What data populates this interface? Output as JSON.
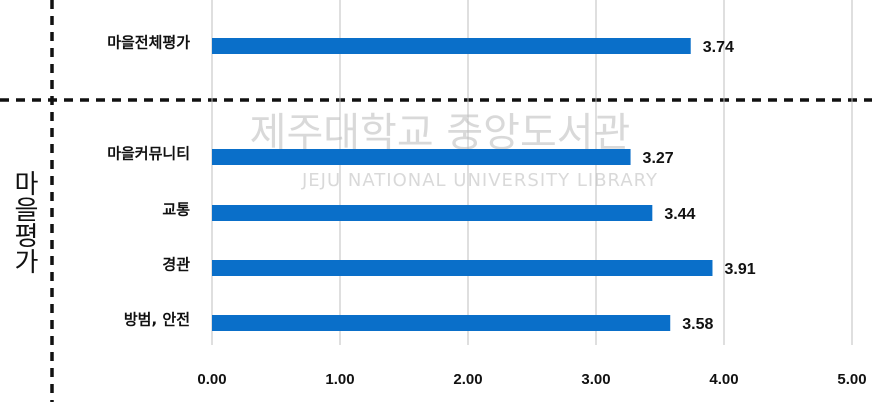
{
  "chart_data": {
    "type": "bar",
    "orientation": "horizontal",
    "group_label": "마을평가",
    "watermark": [
      "제주대학교 중앙도서관",
      "JEJU NATIONAL UNIVERSITY LIBRARY"
    ],
    "categories": [
      "마을전체평가",
      "마을커뮤니티",
      "교통",
      "경관",
      "방범, 안전"
    ],
    "values": [
      3.74,
      3.27,
      3.44,
      3.91,
      3.58
    ],
    "color": "#0a6fc9",
    "xlim": [
      0,
      5
    ],
    "xticks": [
      {
        "value": 0,
        "label": "0.00"
      },
      {
        "value": 1,
        "label": "1.00"
      },
      {
        "value": 2,
        "label": "2.00"
      },
      {
        "value": 3,
        "label": "3.00"
      },
      {
        "value": 4,
        "label": "4.00"
      },
      {
        "value": 5,
        "label": "5.00"
      }
    ],
    "grid": true
  }
}
